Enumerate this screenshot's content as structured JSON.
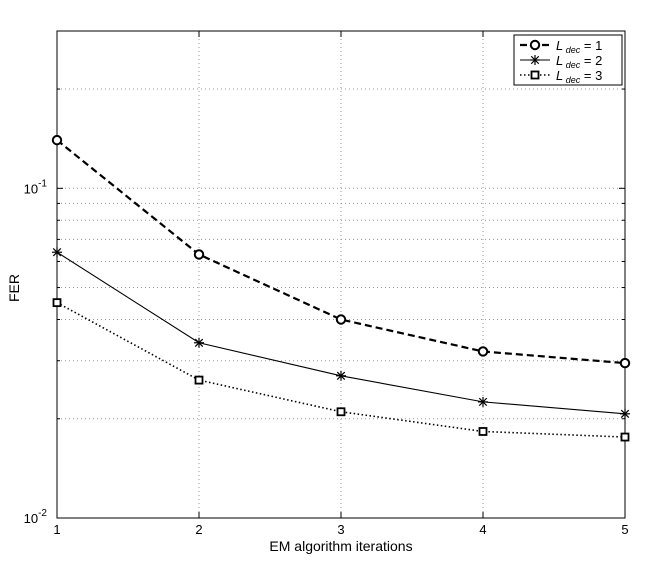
{
  "chart_data": {
    "type": "line",
    "title": "",
    "xlabel": "EM algorithm iterations",
    "ylabel": "FER",
    "xscale": "linear",
    "yscale": "log",
    "xlim": [
      1,
      5
    ],
    "ylim": [
      0.01,
      0.3
    ],
    "grid": true,
    "legend_position": "top-right",
    "x": [
      1,
      2,
      3,
      4,
      5
    ],
    "x_ticks": [
      "1",
      "2",
      "3",
      "4",
      "5"
    ],
    "y_ticks": [
      {
        "value": 0.01,
        "base": "10",
        "exp": "-2"
      },
      {
        "value": 0.1,
        "base": "10",
        "exp": "-1"
      }
    ],
    "series": [
      {
        "name": "L",
        "name_sub": "dec",
        "name_suffix": " = 1",
        "values": [
          0.14,
          0.063,
          0.04,
          0.032,
          0.0295
        ],
        "color": "#000000",
        "line_style": "dashed",
        "marker": "circle"
      },
      {
        "name": "L",
        "name_sub": "dec",
        "name_suffix": " = 2",
        "values": [
          0.064,
          0.034,
          0.027,
          0.0225,
          0.0207
        ],
        "color": "#000000",
        "line_style": "solid",
        "marker": "star"
      },
      {
        "name": "L",
        "name_sub": "dec",
        "name_suffix": " = 3",
        "values": [
          0.045,
          0.0262,
          0.021,
          0.0183,
          0.0176
        ],
        "color": "#000000",
        "line_style": "dotted",
        "marker": "square"
      }
    ]
  }
}
